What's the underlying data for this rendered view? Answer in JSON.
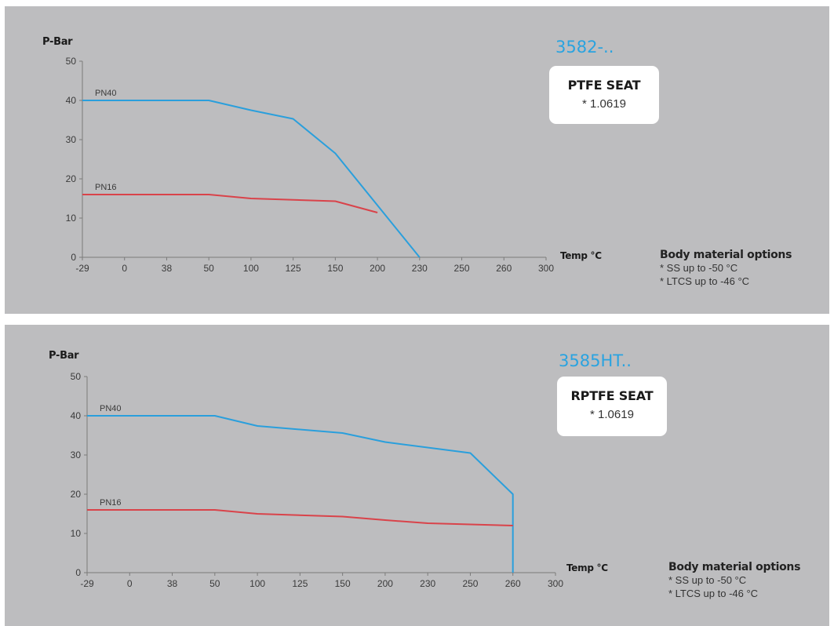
{
  "chart_data": [
    {
      "type": "line",
      "model": "3582-..",
      "seat_title": "PTFE SEAT",
      "seat_material": "* 1.0619",
      "ylabel": "P-Bar",
      "xlabel": "Temp °C",
      "ylim": [
        0,
        50
      ],
      "yticks": [
        "0",
        "10",
        "20",
        "30",
        "40",
        "50"
      ],
      "categories": [
        "-29",
        "0",
        "38",
        "50",
        "100",
        "125",
        "150",
        "200",
        "230",
        "250",
        "260",
        "300"
      ],
      "x_axis_note": "categorical, evenly spaced tick labels",
      "series": [
        {
          "name": "PN40",
          "color": "#2a9fdc",
          "points": [
            [
              "-29",
              40
            ],
            [
              "50",
              40
            ],
            [
              "100",
              37.5
            ],
            [
              "125",
              35.3
            ],
            [
              "150",
              26.5
            ],
            [
              "230",
              0
            ]
          ]
        },
        {
          "name": "PN16",
          "color": "#d9434a",
          "points": [
            [
              "-29",
              16
            ],
            [
              "50",
              16
            ],
            [
              "100",
              15
            ],
            [
              "150",
              14.3
            ],
            [
              "200",
              11.4
            ]
          ]
        }
      ],
      "body_options": {
        "title": "Body material options",
        "items": [
          "* SS up to -50 °C",
          "* LTCS up to -46 °C"
        ]
      }
    },
    {
      "type": "line",
      "model": "3585HT..",
      "seat_title": "RPTFE SEAT",
      "seat_material": "* 1.0619",
      "ylabel": "P-Bar",
      "xlabel": "Temp °C",
      "ylim": [
        0,
        50
      ],
      "yticks": [
        "0",
        "10",
        "20",
        "30",
        "40",
        "50"
      ],
      "categories": [
        "-29",
        "0",
        "38",
        "50",
        "100",
        "125",
        "150",
        "200",
        "230",
        "250",
        "260",
        "300"
      ],
      "x_axis_note": "categorical, evenly spaced tick labels",
      "series": [
        {
          "name": "PN40",
          "color": "#2a9fdc",
          "points": [
            [
              "-29",
              40
            ],
            [
              "50",
              40
            ],
            [
              "100",
              37.4
            ],
            [
              "150",
              35.6
            ],
            [
              "200",
              33.3
            ],
            [
              "250",
              30.5
            ],
            [
              "260",
              20
            ],
            [
              "260",
              0
            ]
          ]
        },
        {
          "name": "PN16",
          "color": "#d9434a",
          "points": [
            [
              "-29",
              16
            ],
            [
              "50",
              16
            ],
            [
              "100",
              15
            ],
            [
              "150",
              14.3
            ],
            [
              "200",
              13.4
            ],
            [
              "230",
              12.6
            ],
            [
              "250",
              12.3
            ],
            [
              "260",
              12
            ]
          ]
        }
      ],
      "body_options": {
        "title": "Body material options",
        "items": [
          "* SS up to -50 °C",
          "* LTCS up to -46 °C"
        ]
      }
    }
  ]
}
